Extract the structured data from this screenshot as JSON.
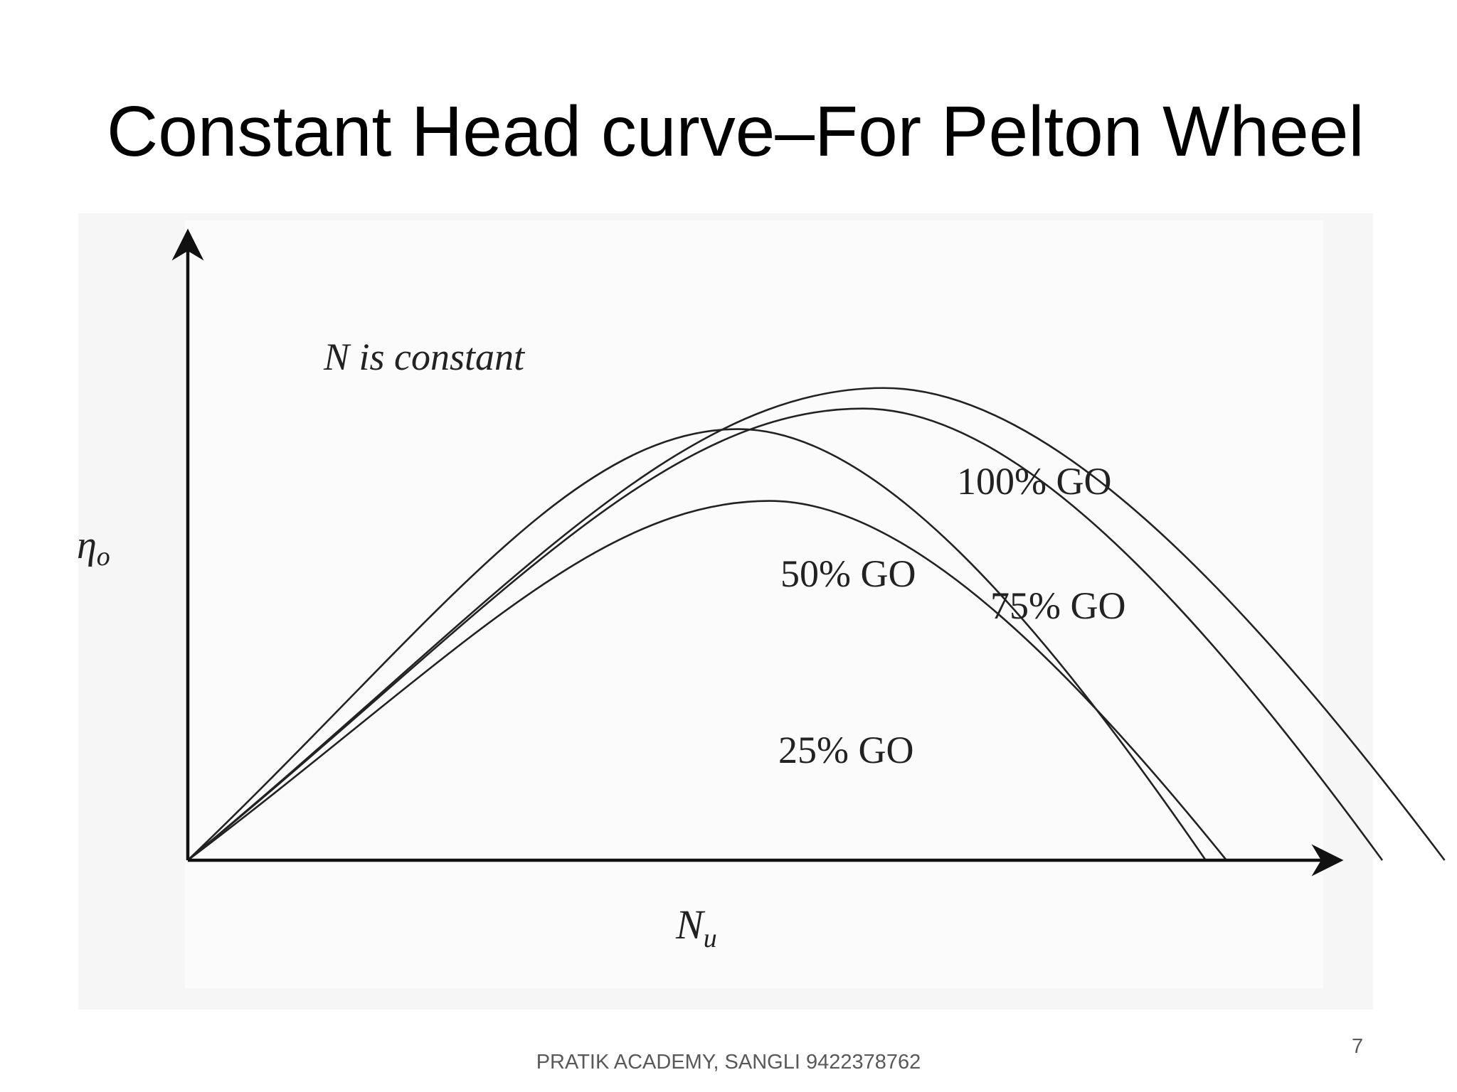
{
  "slide": {
    "title": "Constant Head curve–For Pelton Wheel",
    "footer": "PRATIK ACADEMY, SANGLI 9422378762",
    "page_number": "7"
  },
  "chart_data": {
    "type": "line",
    "title": "",
    "xlabel": "N",
    "xlabel_subscript": "u",
    "ylabel": "η",
    "ylabel_subscript": "o",
    "annotation": "N is constant",
    "grid": false,
    "legend": "none",
    "series": [
      {
        "name": "25% GO",
        "color": "#222222",
        "points": [
          [
            0,
            0
          ],
          [
            0.56,
            0.7
          ],
          [
            1.0,
            0
          ]
        ]
      },
      {
        "name": "50% GO",
        "color": "#222222",
        "points": [
          [
            0,
            0
          ],
          [
            0.53,
            0.84
          ],
          [
            0.98,
            0
          ]
        ]
      },
      {
        "name": "75% GO",
        "color": "#222222",
        "points": [
          [
            0,
            0
          ],
          [
            0.65,
            0.88
          ],
          [
            1.15,
            0
          ]
        ]
      },
      {
        "name": "100% GO",
        "color": "#222222",
        "points": [
          [
            0,
            0
          ],
          [
            0.67,
            0.92
          ],
          [
            1.21,
            0
          ]
        ]
      }
    ]
  }
}
